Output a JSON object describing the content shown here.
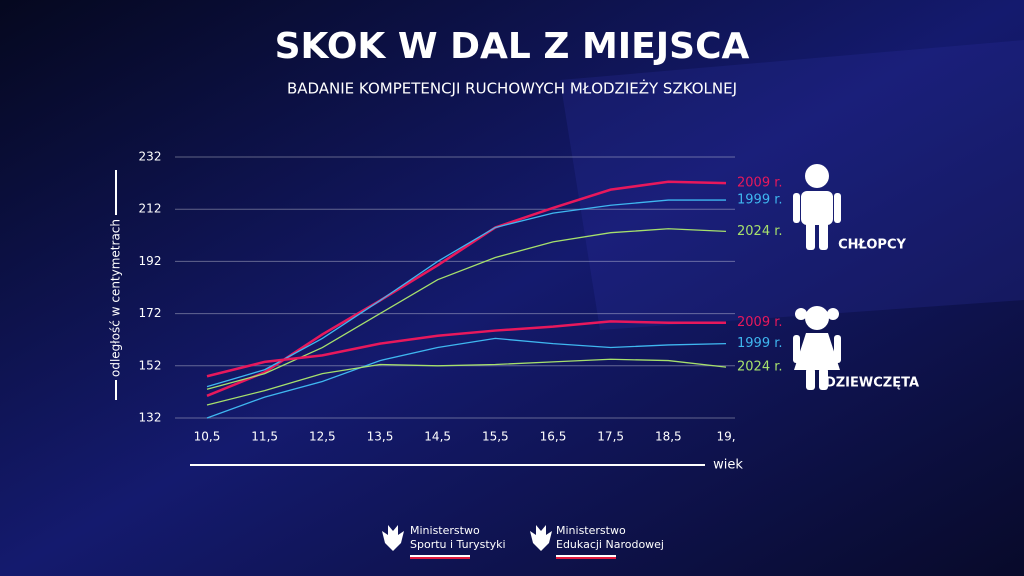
{
  "chart_data": {
    "type": "line",
    "title": "SKOK W DAL Z MIEJSCA",
    "subtitle": "BADANIE KOMPETENCJI RUCHOWYCH MŁODZIEŻY SZKOLNEJ",
    "y_label": "odległość  w  centymetrach",
    "x_label": "wiek",
    "categories": [
      "10,5",
      "11,5",
      "12,5",
      "13,5",
      "14,5",
      "15,5",
      "16,5",
      "17,5",
      "18,5",
      "19,"
    ],
    "ylim": [
      132,
      232
    ],
    "yticks": [
      132,
      152,
      172,
      192,
      212,
      232
    ],
    "grid": true,
    "series_groups": [
      {
        "label": "CHŁOPCY",
        "series": [
          {
            "name": "2009 r.",
            "color": "#e8185c",
            "values": [
              140.5,
              149.5,
              164,
              177,
              190.5,
              205,
              212.5,
              219.5,
              222.5,
              222
            ]
          },
          {
            "name": "1999 r.",
            "color": "#3fb7f0",
            "values": [
              144,
              150.5,
              162.5,
              177,
              192,
              205,
              210.5,
              213.5,
              215.5,
              215.5
            ]
          },
          {
            "name": "2024 r.",
            "color": "#a6e06c",
            "values": [
              143,
              149,
              159,
              172,
              185,
              193.5,
              199.5,
              203,
              204.5,
              203.5
            ]
          }
        ]
      },
      {
        "label": "DZIEWCZĘTA",
        "series": [
          {
            "name": "2009 r.",
            "color": "#e8185c",
            "values": [
              148,
              153.5,
              156,
              160.5,
              163.5,
              165.5,
              167,
              169,
              168.5,
              168.5
            ]
          },
          {
            "name": "1999 r.",
            "color": "#3fb7f0",
            "values": [
              132,
              140,
              146,
              154,
              159,
              162.5,
              160.5,
              159,
              160,
              160.5
            ]
          },
          {
            "name": "2024 r.",
            "color": "#a6e06c",
            "values": [
              137,
              142.5,
              149,
              152.5,
              152,
              152.5,
              153.5,
              154.5,
              154,
              151.5
            ]
          }
        ]
      }
    ]
  },
  "footer": {
    "logos": [
      {
        "lines": [
          "Ministerstwo",
          "Sportu i Turystyki"
        ]
      },
      {
        "lines": [
          "Ministerstwo",
          "Edukacji Narodowej"
        ]
      }
    ]
  }
}
